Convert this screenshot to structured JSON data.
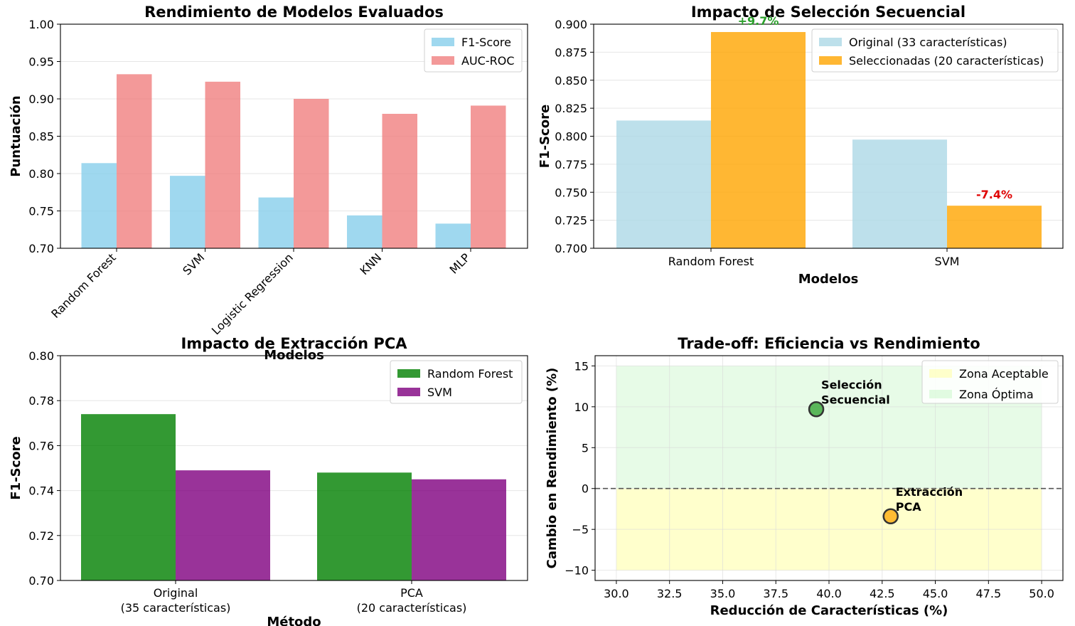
{
  "chart_data": [
    {
      "type": "bar",
      "title": "Rendimiento de Modelos Evaluados",
      "xlabel": "Modelos",
      "ylabel": "Puntuación",
      "categories": [
        "Random Forest",
        "SVM",
        "Logistic Regression",
        "KNN",
        "MLP"
      ],
      "series": [
        {
          "name": "F1-Score",
          "values": [
            0.814,
            0.797,
            0.768,
            0.744,
            0.733
          ],
          "color": "#87ceeb"
        },
        {
          "name": "AUC-ROC",
          "values": [
            0.933,
            0.923,
            0.9,
            0.88,
            0.891
          ],
          "color": "#f08080"
        }
      ],
      "ylim": [
        0.7,
        1.0
      ],
      "yticks": [
        "0.70",
        "0.75",
        "0.80",
        "0.85",
        "0.90",
        "0.95",
        "1.00"
      ],
      "legend": "top-right",
      "grid": true
    },
    {
      "type": "bar",
      "title": "Impacto de Selección Secuencial",
      "xlabel": "Modelos",
      "ylabel": "F1-Score",
      "categories": [
        "Random Forest",
        "SVM"
      ],
      "series": [
        {
          "name": "Original (33 características)",
          "values": [
            0.814,
            0.797
          ],
          "color": "#add8e6"
        },
        {
          "name": "Seleccionadas (20 características)",
          "values": [
            0.893,
            0.738
          ],
          "color": "#ffa500"
        }
      ],
      "annotations": [
        {
          "text": "+9.7%",
          "color": "#2ca02c"
        },
        {
          "text": "-7.4%",
          "color": "#e00000"
        }
      ],
      "ylim": [
        0.7,
        0.9
      ],
      "yticks": [
        "0.700",
        "0.725",
        "0.750",
        "0.775",
        "0.800",
        "0.825",
        "0.850",
        "0.875",
        "0.900"
      ],
      "legend": "top-right",
      "grid": true
    },
    {
      "type": "bar",
      "title": "Impacto de Extracción PCA",
      "xlabel": "Método",
      "ylabel": "F1-Score",
      "categories": [
        [
          "Original",
          "(35 características)"
        ],
        [
          "PCA",
          "(20 características)"
        ]
      ],
      "series": [
        {
          "name": "Random Forest",
          "values": [
            0.774,
            0.748
          ],
          "color": "#008000"
        },
        {
          "name": "SVM",
          "values": [
            0.749,
            0.745
          ],
          "color": "#800080"
        }
      ],
      "ylim": [
        0.7,
        0.8
      ],
      "yticks": [
        "0.70",
        "0.72",
        "0.74",
        "0.76",
        "0.78",
        "0.80"
      ],
      "legend": "top-right",
      "grid": true
    },
    {
      "type": "scatter",
      "title": "Trade-off: Eficiencia vs Rendimiento",
      "xlabel": "Reducción de Características (%)",
      "ylabel": "Cambio en Rendimiento (%)",
      "points": [
        {
          "x": 39.4,
          "y": 9.7,
          "label": [
            "Selección",
            "Secuencial"
          ],
          "color": "#2ca02c"
        },
        {
          "x": 42.9,
          "y": -3.4,
          "label": [
            "Extracción",
            "PCA"
          ],
          "color": "#ffa500"
        }
      ],
      "zones": [
        {
          "name": "Zona Aceptable",
          "x": [
            30,
            50
          ],
          "y": [
            -10,
            0
          ],
          "color": "#ffff99"
        },
        {
          "name": "Zona Óptima",
          "x": [
            30,
            50
          ],
          "y": [
            0,
            15
          ],
          "color": "#90ee90"
        }
      ],
      "hline": 0,
      "xlim": [
        29,
        51
      ],
      "ylim": [
        -11.25,
        16.25
      ],
      "xticks": [
        "30.0",
        "32.5",
        "35.0",
        "37.5",
        "40.0",
        "42.5",
        "45.0",
        "47.5",
        "50.0"
      ],
      "yticks": [
        "−10",
        "−5",
        "0",
        "5",
        "10",
        "15"
      ],
      "legend": "top-right",
      "grid": true
    }
  ]
}
